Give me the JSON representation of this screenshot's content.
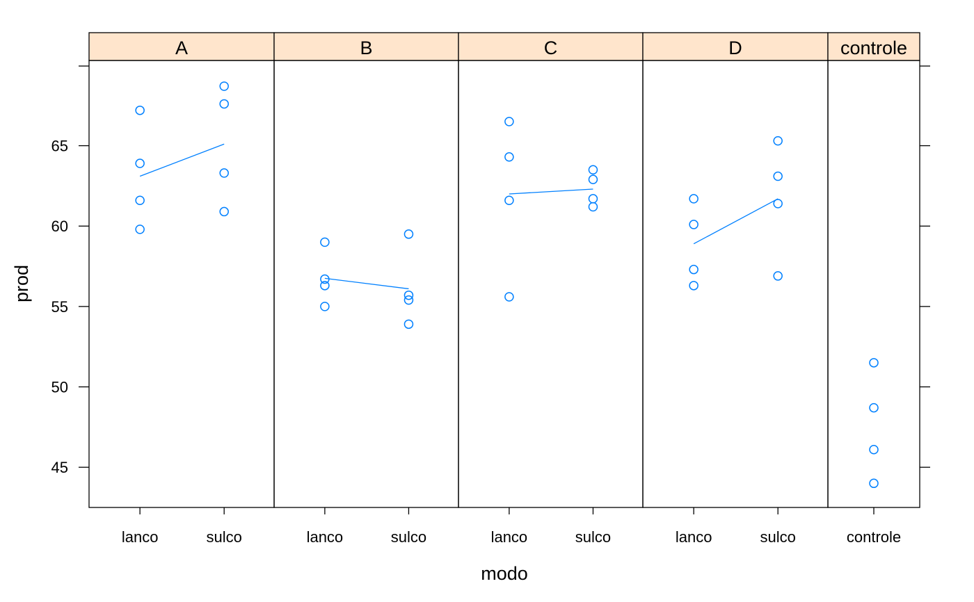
{
  "chart_data": {
    "type": "scatter",
    "title": "",
    "xlabel": "modo",
    "ylabel": "prod",
    "ylim": [
      42.5,
      70.3
    ],
    "y_ticks": [
      45,
      50,
      55,
      60,
      65
    ],
    "grid": false,
    "colors": {
      "points": "#0080ff",
      "strip": "#ffe5cc"
    },
    "panels": [
      {
        "strip_label": "A",
        "categories": [
          "lanco",
          "sulco"
        ],
        "points": {
          "lanco": [
            67.2,
            63.9,
            61.6,
            59.8
          ],
          "sulco": [
            68.7,
            67.6,
            63.3,
            60.9
          ]
        },
        "mean_line": [
          63.1,
          65.1
        ]
      },
      {
        "strip_label": "B",
        "categories": [
          "lanco",
          "sulco"
        ],
        "points": {
          "lanco": [
            59.0,
            56.7,
            56.3,
            55.0
          ],
          "sulco": [
            59.5,
            55.7,
            55.4,
            53.9
          ]
        },
        "mean_line": [
          56.75,
          56.1
        ]
      },
      {
        "strip_label": "C",
        "categories": [
          "lanco",
          "sulco"
        ],
        "points": {
          "lanco": [
            66.5,
            64.3,
            61.6,
            55.6
          ],
          "sulco": [
            63.5,
            62.9,
            61.7,
            61.2
          ]
        },
        "mean_line": [
          62.0,
          62.3
        ]
      },
      {
        "strip_label": "D",
        "categories": [
          "lanco",
          "sulco"
        ],
        "points": {
          "lanco": [
            61.7,
            60.1,
            57.3,
            56.3
          ],
          "sulco": [
            65.3,
            63.1,
            61.4,
            56.9
          ]
        },
        "mean_line": [
          58.9,
          61.7
        ]
      },
      {
        "strip_label": "controle",
        "categories": [
          "controle"
        ],
        "points": {
          "controle": [
            51.5,
            48.7,
            46.1,
            44.0
          ]
        },
        "mean_line": null
      }
    ]
  }
}
